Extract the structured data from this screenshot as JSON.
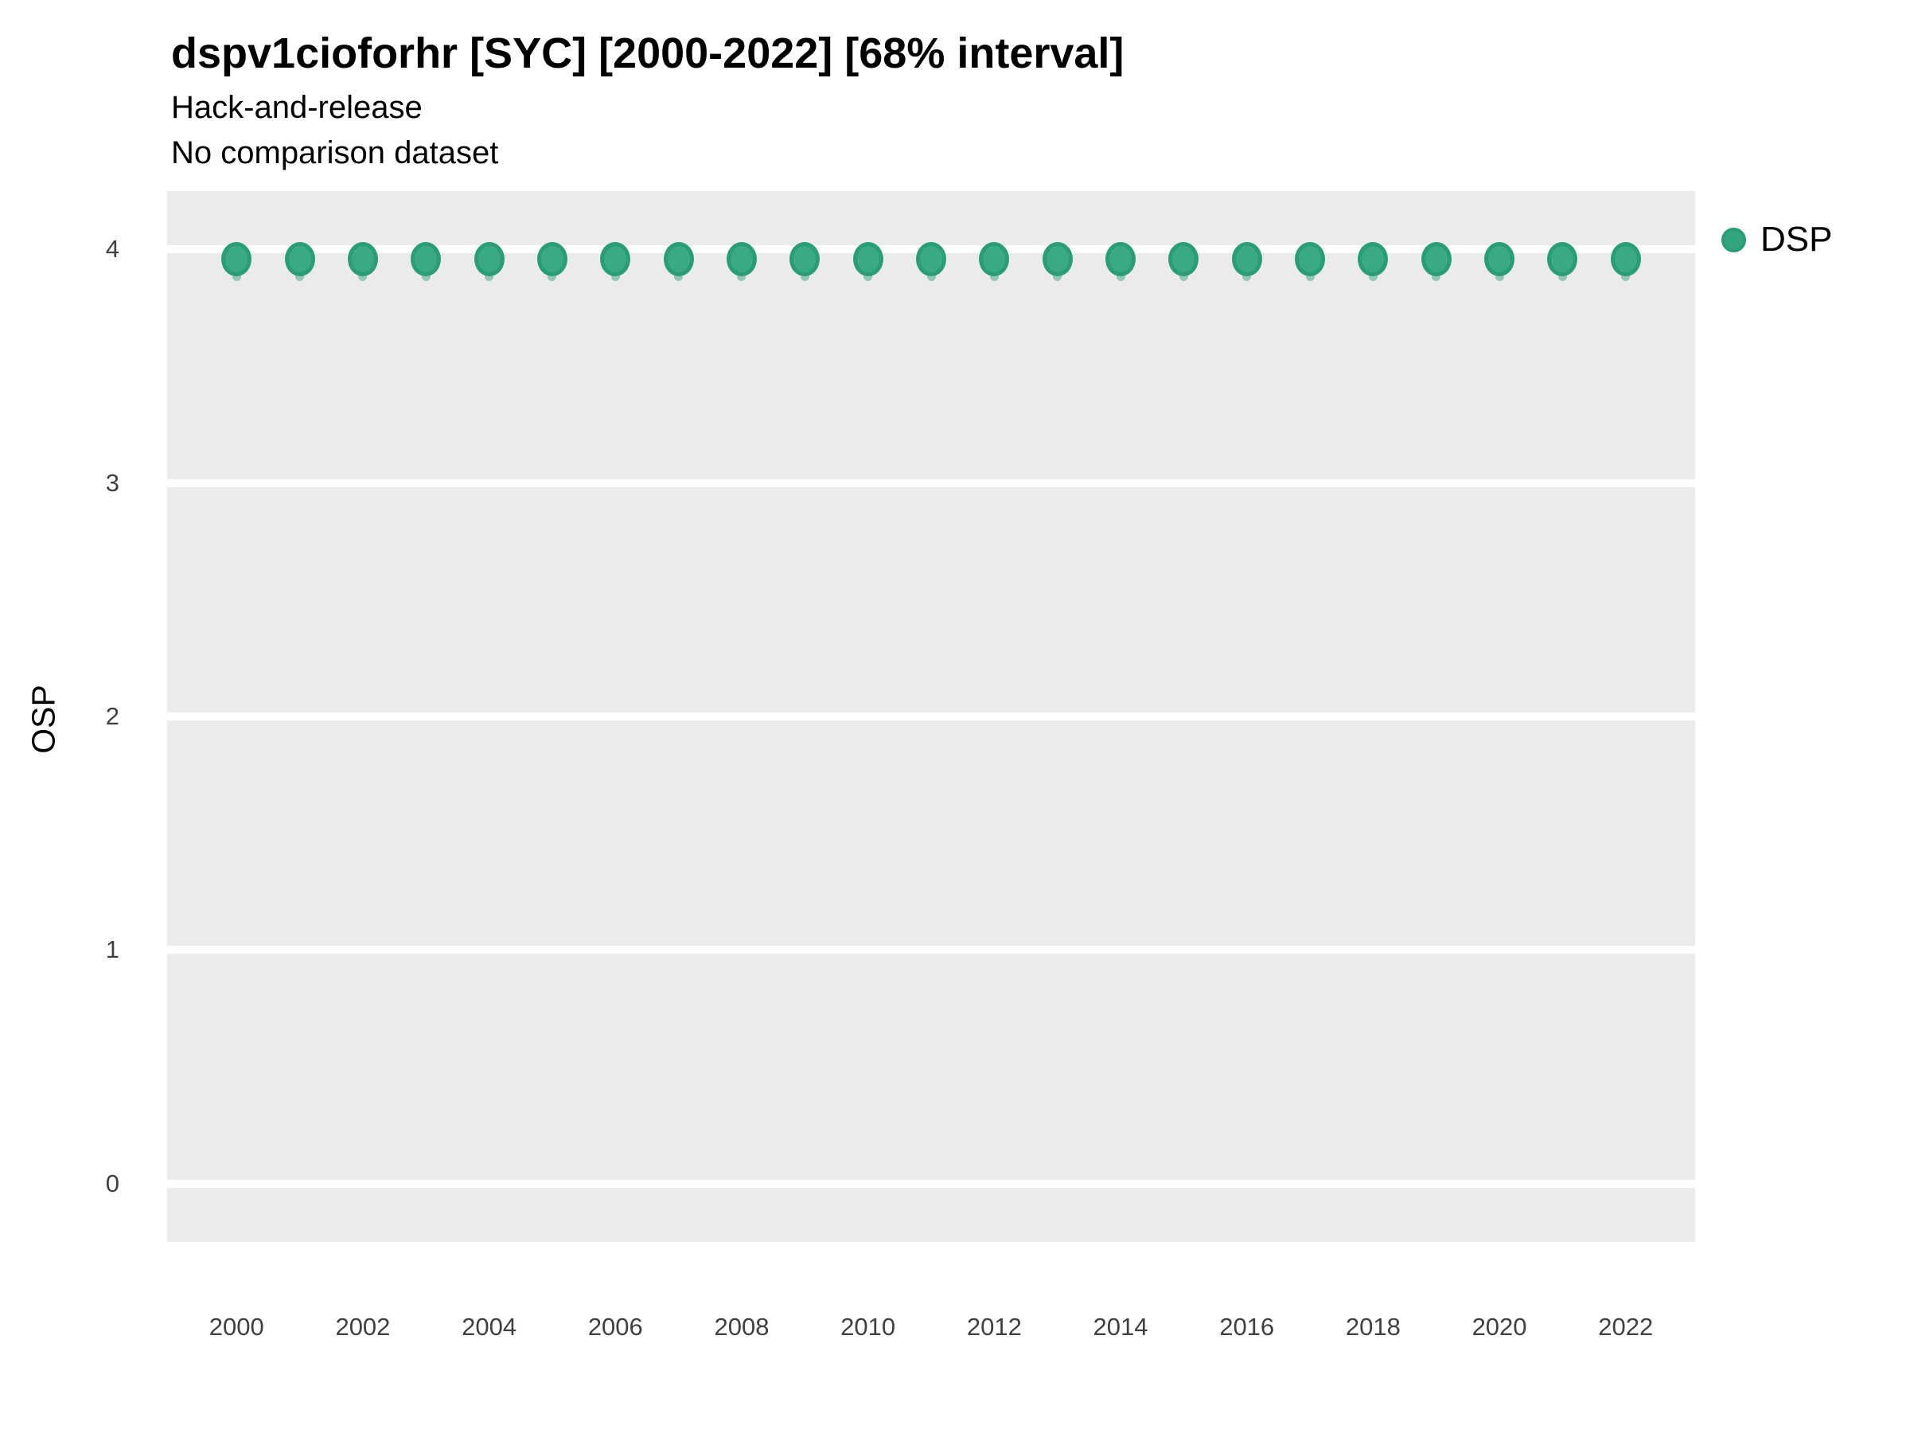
{
  "page": {
    "background_color": "#ffffff"
  },
  "chart_data": {
    "type": "scatter",
    "title": "dspv1cioforhr [SYC] [2000-2022] [68% interval]",
    "subtitle": [
      "Hack-and-release",
      "No comparison dataset"
    ],
    "xlabel": "",
    "ylabel": "OSP",
    "x": [
      2000,
      2001,
      2002,
      2003,
      2004,
      2005,
      2006,
      2007,
      2008,
      2009,
      2010,
      2011,
      2012,
      2013,
      2014,
      2015,
      2016,
      2017,
      2018,
      2019,
      2020,
      2021,
      2022
    ],
    "series": [
      {
        "name": "DSP",
        "values": [
          3.96,
          3.96,
          3.96,
          3.96,
          3.96,
          3.96,
          3.96,
          3.96,
          3.96,
          3.96,
          3.96,
          3.96,
          3.96,
          3.96,
          3.96,
          3.96,
          3.96,
          3.96,
          3.96,
          3.96,
          3.96,
          3.96,
          3.96
        ],
        "interval_low": [
          3.88,
          3.88,
          3.88,
          3.88,
          3.88,
          3.88,
          3.88,
          3.88,
          3.88,
          3.88,
          3.88,
          3.88,
          3.88,
          3.88,
          3.88,
          3.88,
          3.88,
          3.88,
          3.88,
          3.88,
          3.88,
          3.88,
          3.88
        ],
        "interval_high": [
          4.04,
          4.04,
          4.04,
          4.04,
          4.04,
          4.04,
          4.04,
          4.04,
          4.04,
          4.04,
          4.04,
          4.04,
          4.04,
          4.04,
          4.04,
          4.04,
          4.04,
          4.04,
          4.04,
          4.04,
          4.04,
          4.04,
          4.04
        ],
        "point_fill_color": "#3aaa85",
        "point_border_color": "#299e76",
        "interval_color": "rgba(41,158,118,0.45)"
      }
    ],
    "xticks": [
      2000,
      2002,
      2004,
      2006,
      2008,
      2010,
      2012,
      2014,
      2016,
      2018,
      2020,
      2022
    ],
    "yticks": [
      0,
      1,
      2,
      3,
      4
    ],
    "xlim": [
      1998.9,
      2023.1
    ],
    "ylim": [
      -0.25,
      4.25
    ],
    "grid": "horizontal-major-only",
    "gridline_color": "#ffffff",
    "panel_background": "#ebebeb",
    "legend": {
      "label": "DSP",
      "position": "right-top"
    }
  }
}
